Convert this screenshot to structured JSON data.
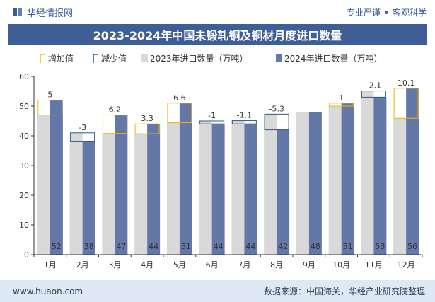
{
  "header": {
    "brand": "华经情报网",
    "tagline_left": "专业严谨",
    "tagline_right": "客观科学"
  },
  "footer": {
    "website": "www.huaon.com",
    "source": "数据来源：中国海关，华经产业研究院整理"
  },
  "colors": {
    "series_2023": "#d9d9d9",
    "series_2024": "#6478a8",
    "increase": "#f2b705",
    "decrease": "#2e5a88",
    "title_bg": "#3f5d97"
  },
  "chart_data": {
    "type": "bar",
    "title": "2023-2024年中国未锻轧铜及铜材月度进口数量",
    "categories": [
      "1月",
      "2月",
      "3月",
      "4月",
      "5月",
      "6月",
      "7月",
      "8月",
      "9月",
      "10月",
      "11月",
      "12月"
    ],
    "series": [
      {
        "name": "2023年进口数量（万吨）",
        "values": [
          47,
          41,
          40.8,
          40.7,
          44.4,
          45,
          45.1,
          47.3,
          48,
          50,
          55.1,
          45.9
        ]
      },
      {
        "name": "2024年进口数量（万吨）",
        "values": [
          52,
          38,
          47,
          44,
          51,
          44,
          44,
          42,
          48,
          51,
          53,
          56
        ]
      }
    ],
    "changes": [
      "5",
      "-3",
      "6.2",
      "3.3",
      "6.6",
      "-1",
      "-1.1",
      "-5.3",
      "",
      "1",
      "-2.1",
      "10.1"
    ],
    "legend": [
      "增加值",
      "减少值",
      "2023年进口数量（万吨）",
      "2024年进口数量（万吨）"
    ],
    "yticks": [
      "0",
      "10",
      "20",
      "30",
      "40",
      "50",
      "60"
    ],
    "ylim": [
      0,
      60
    ],
    "legend_position": "top",
    "grid": false
  }
}
